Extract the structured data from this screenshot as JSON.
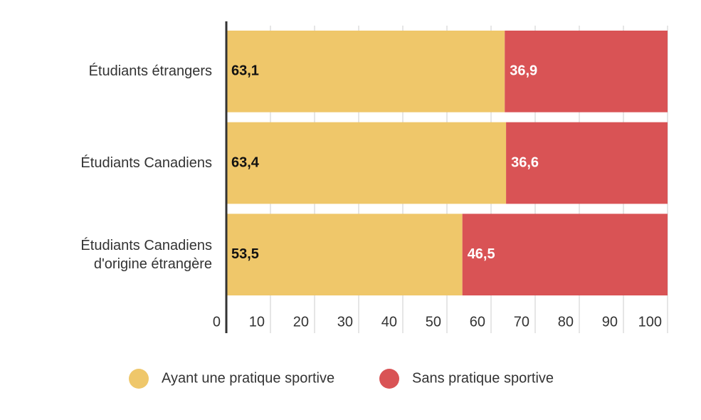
{
  "chart_data": {
    "type": "stacked-bar-horizontal",
    "categories": [
      "Étudiants étrangers",
      "Étudiants Canadiens",
      "Étudiants Canadiens d'origine étrangère"
    ],
    "series": [
      {
        "name": "Ayant une pratique sportive",
        "color": "#efc76a",
        "values": [
          63.1,
          63.4,
          53.5
        ],
        "value_labels": [
          "63,1",
          "63,4",
          "53,5"
        ]
      },
      {
        "name": "Sans pratique sportive",
        "color": "#d95355",
        "values": [
          36.9,
          36.6,
          46.5
        ],
        "value_labels": [
          "36,9",
          "36,6",
          "46,5"
        ]
      }
    ],
    "xlim": [
      0,
      100
    ],
    "xticks": [
      0,
      10,
      20,
      30,
      40,
      50,
      60,
      70,
      80,
      90,
      100
    ],
    "grid": true,
    "legend": "bottom"
  }
}
